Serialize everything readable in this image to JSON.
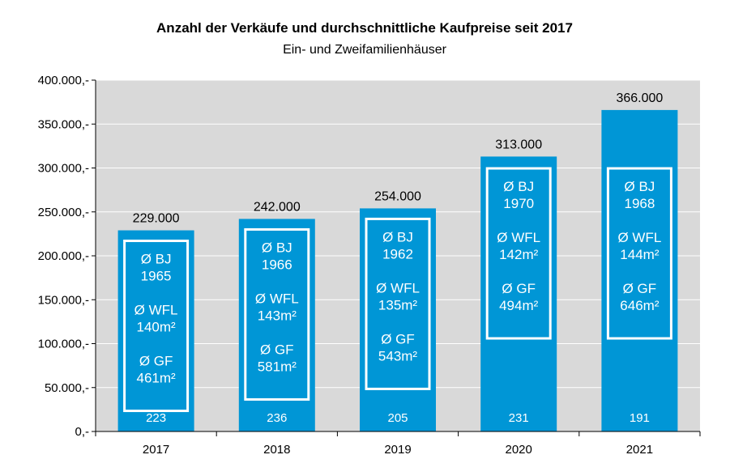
{
  "chart_data": {
    "type": "bar",
    "title": "Anzahl der Verkäufe und durchschnittliche Kaufpreise seit 2017",
    "subtitle": "Ein- und Zweifamilienhäuser",
    "categories": [
      "2017",
      "2018",
      "2019",
      "2020",
      "2021"
    ],
    "values": [
      229000,
      242000,
      254000,
      313000,
      366000
    ],
    "value_labels": [
      "229.000",
      "242.000",
      "254.000",
      "313.000",
      "366.000"
    ],
    "counts": [
      "223",
      "236",
      "205",
      "231",
      "191"
    ],
    "annotations": [
      {
        "bj_label": "Ø BJ",
        "bj": "1965",
        "wfl_label": "Ø WFL",
        "wfl": "140m²",
        "gf_label": "Ø GF",
        "gf": "461m²"
      },
      {
        "bj_label": "Ø BJ",
        "bj": "1966",
        "wfl_label": "Ø WFL",
        "wfl": "143m²",
        "gf_label": "Ø GF",
        "gf": "581m²"
      },
      {
        "bj_label": "Ø BJ",
        "bj": "1962",
        "wfl_label": "Ø WFL",
        "wfl": "135m²",
        "gf_label": "Ø GF",
        "gf": "543m²"
      },
      {
        "bj_label": "Ø BJ",
        "bj": "1970",
        "wfl_label": "Ø WFL",
        "wfl": "142m²",
        "gf_label": "Ø GF",
        "gf": "494m²"
      },
      {
        "bj_label": "Ø BJ",
        "bj": "1968",
        "wfl_label": "Ø WFL",
        "wfl": "144m²",
        "gf_label": "Ø GF",
        "gf": "646m²"
      }
    ],
    "yticks": [
      0,
      50000,
      100000,
      150000,
      200000,
      250000,
      300000,
      350000,
      400000
    ],
    "ytick_labels": [
      "0,-",
      "50.000,-",
      "100.000,-",
      "150.000,-",
      "200.000,-",
      "250.000,-",
      "300.000,-",
      "350.000,-",
      "400.000,-"
    ],
    "ylim": [
      0,
      400000
    ],
    "grid": true,
    "legend": "none",
    "colors": {
      "bar": "#0096d6",
      "plot_bg": "#d9d9d9",
      "grid": "#ffffff",
      "box_border": "#ffffff"
    }
  }
}
